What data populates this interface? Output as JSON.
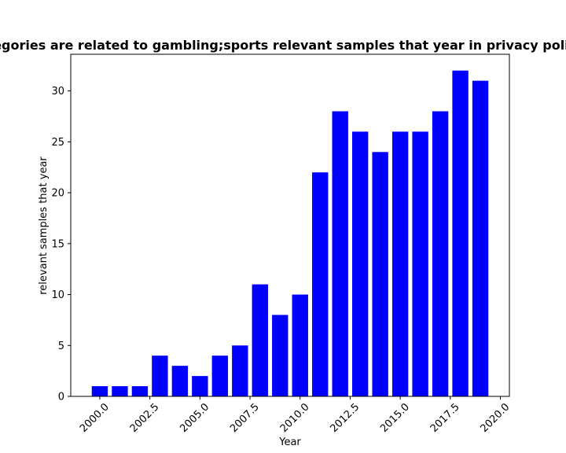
{
  "chart_data": {
    "type": "bar",
    "title": "Categories are related to gambling;sports relevant samples that year in privacy policies",
    "xlabel": "Year",
    "ylabel": "relevant samples that year",
    "x": [
      2000,
      2001,
      2002,
      2003,
      2004,
      2005,
      2006,
      2007,
      2008,
      2009,
      2010,
      2011,
      2012,
      2013,
      2014,
      2015,
      2016,
      2017,
      2018,
      2019
    ],
    "values": [
      1,
      1,
      1,
      4,
      3,
      2,
      4,
      5,
      11,
      8,
      10,
      22,
      28,
      26,
      24,
      26,
      26,
      28,
      32,
      31
    ],
    "xlim": [
      1998.55,
      2020.45
    ],
    "ylim": [
      0,
      33.6
    ],
    "xticks": [
      2000.0,
      2002.5,
      2005.0,
      2007.5,
      2010.0,
      2012.5,
      2015.0,
      2017.5,
      2020.0
    ],
    "xtick_labels": [
      "2000.0",
      "2002.5",
      "2005.0",
      "2007.5",
      "2010.0",
      "2012.5",
      "2015.0",
      "2017.5",
      "2020.0"
    ],
    "yticks": [
      0,
      5,
      10,
      15,
      20,
      25,
      30
    ],
    "ytick_labels": [
      "0",
      "5",
      "10",
      "15",
      "20",
      "25",
      "30"
    ],
    "bar_color": "#0000ff",
    "grid": false,
    "legend": false
  }
}
